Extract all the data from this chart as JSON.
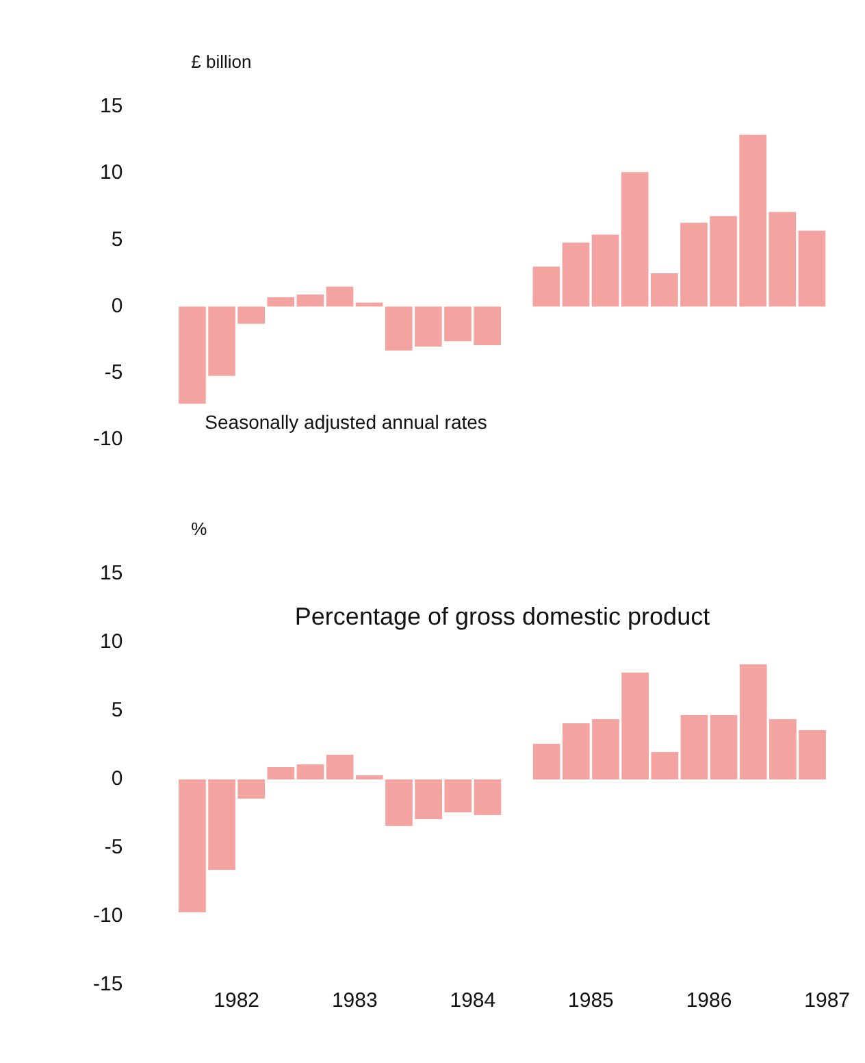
{
  "chart_data": [
    {
      "type": "bar",
      "ylabel": "£ billion",
      "annotations": [
        "Seasonally adjusted annual rates"
      ],
      "x": [
        1981.625,
        1981.875,
        1982.125,
        1982.375,
        1982.625,
        1982.875,
        1983.125,
        1983.375,
        1983.625,
        1983.875,
        1984.125,
        1984.625,
        1984.875,
        1985.125,
        1985.375,
        1985.625,
        1985.875,
        1986.125,
        1986.375,
        1986.625,
        1986.875
      ],
      "values": [
        -7.3,
        -5.2,
        -1.3,
        0.7,
        0.9,
        1.5,
        0.3,
        -3.3,
        -3.0,
        -2.6,
        -2.9,
        3.0,
        4.8,
        5.4,
        10.1,
        2.5,
        6.3,
        6.8,
        12.9,
        7.1,
        5.7
      ],
      "color": "#f4a4a0",
      "xlim": [
        1981.5,
        1987
      ],
      "xticks": [
        1982,
        1983,
        1984,
        1985,
        1986,
        1987
      ],
      "ylim": [
        -10,
        15
      ],
      "yticks": [
        -10,
        -5,
        0,
        5,
        10,
        15
      ],
      "grid": false,
      "legend": false,
      "tick_labels": "y"
    },
    {
      "type": "bar",
      "title": "Percentage of gross domestic product",
      "ylabel": "%",
      "x": [
        1981.625,
        1981.875,
        1982.125,
        1982.375,
        1982.625,
        1982.875,
        1983.125,
        1983.375,
        1983.625,
        1983.875,
        1984.125,
        1984.625,
        1984.875,
        1985.125,
        1985.375,
        1985.625,
        1985.875,
        1986.125,
        1986.375,
        1986.625,
        1986.875
      ],
      "values": [
        -9.7,
        -6.6,
        -1.4,
        0.9,
        1.1,
        1.8,
        0.3,
        -3.4,
        -2.9,
        -2.4,
        -2.6,
        2.6,
        4.1,
        4.4,
        7.8,
        2.0,
        4.7,
        4.7,
        8.4,
        4.4,
        3.6
      ],
      "color": "#f4a4a0",
      "xlim": [
        1981.5,
        1987
      ],
      "xticks": [
        1982,
        1983,
        1984,
        1985,
        1986,
        1987
      ],
      "ylim": [
        -15,
        15
      ],
      "yticks": [
        -15,
        -10,
        -5,
        0,
        5,
        10,
        15
      ],
      "grid": false,
      "legend": false
    }
  ]
}
